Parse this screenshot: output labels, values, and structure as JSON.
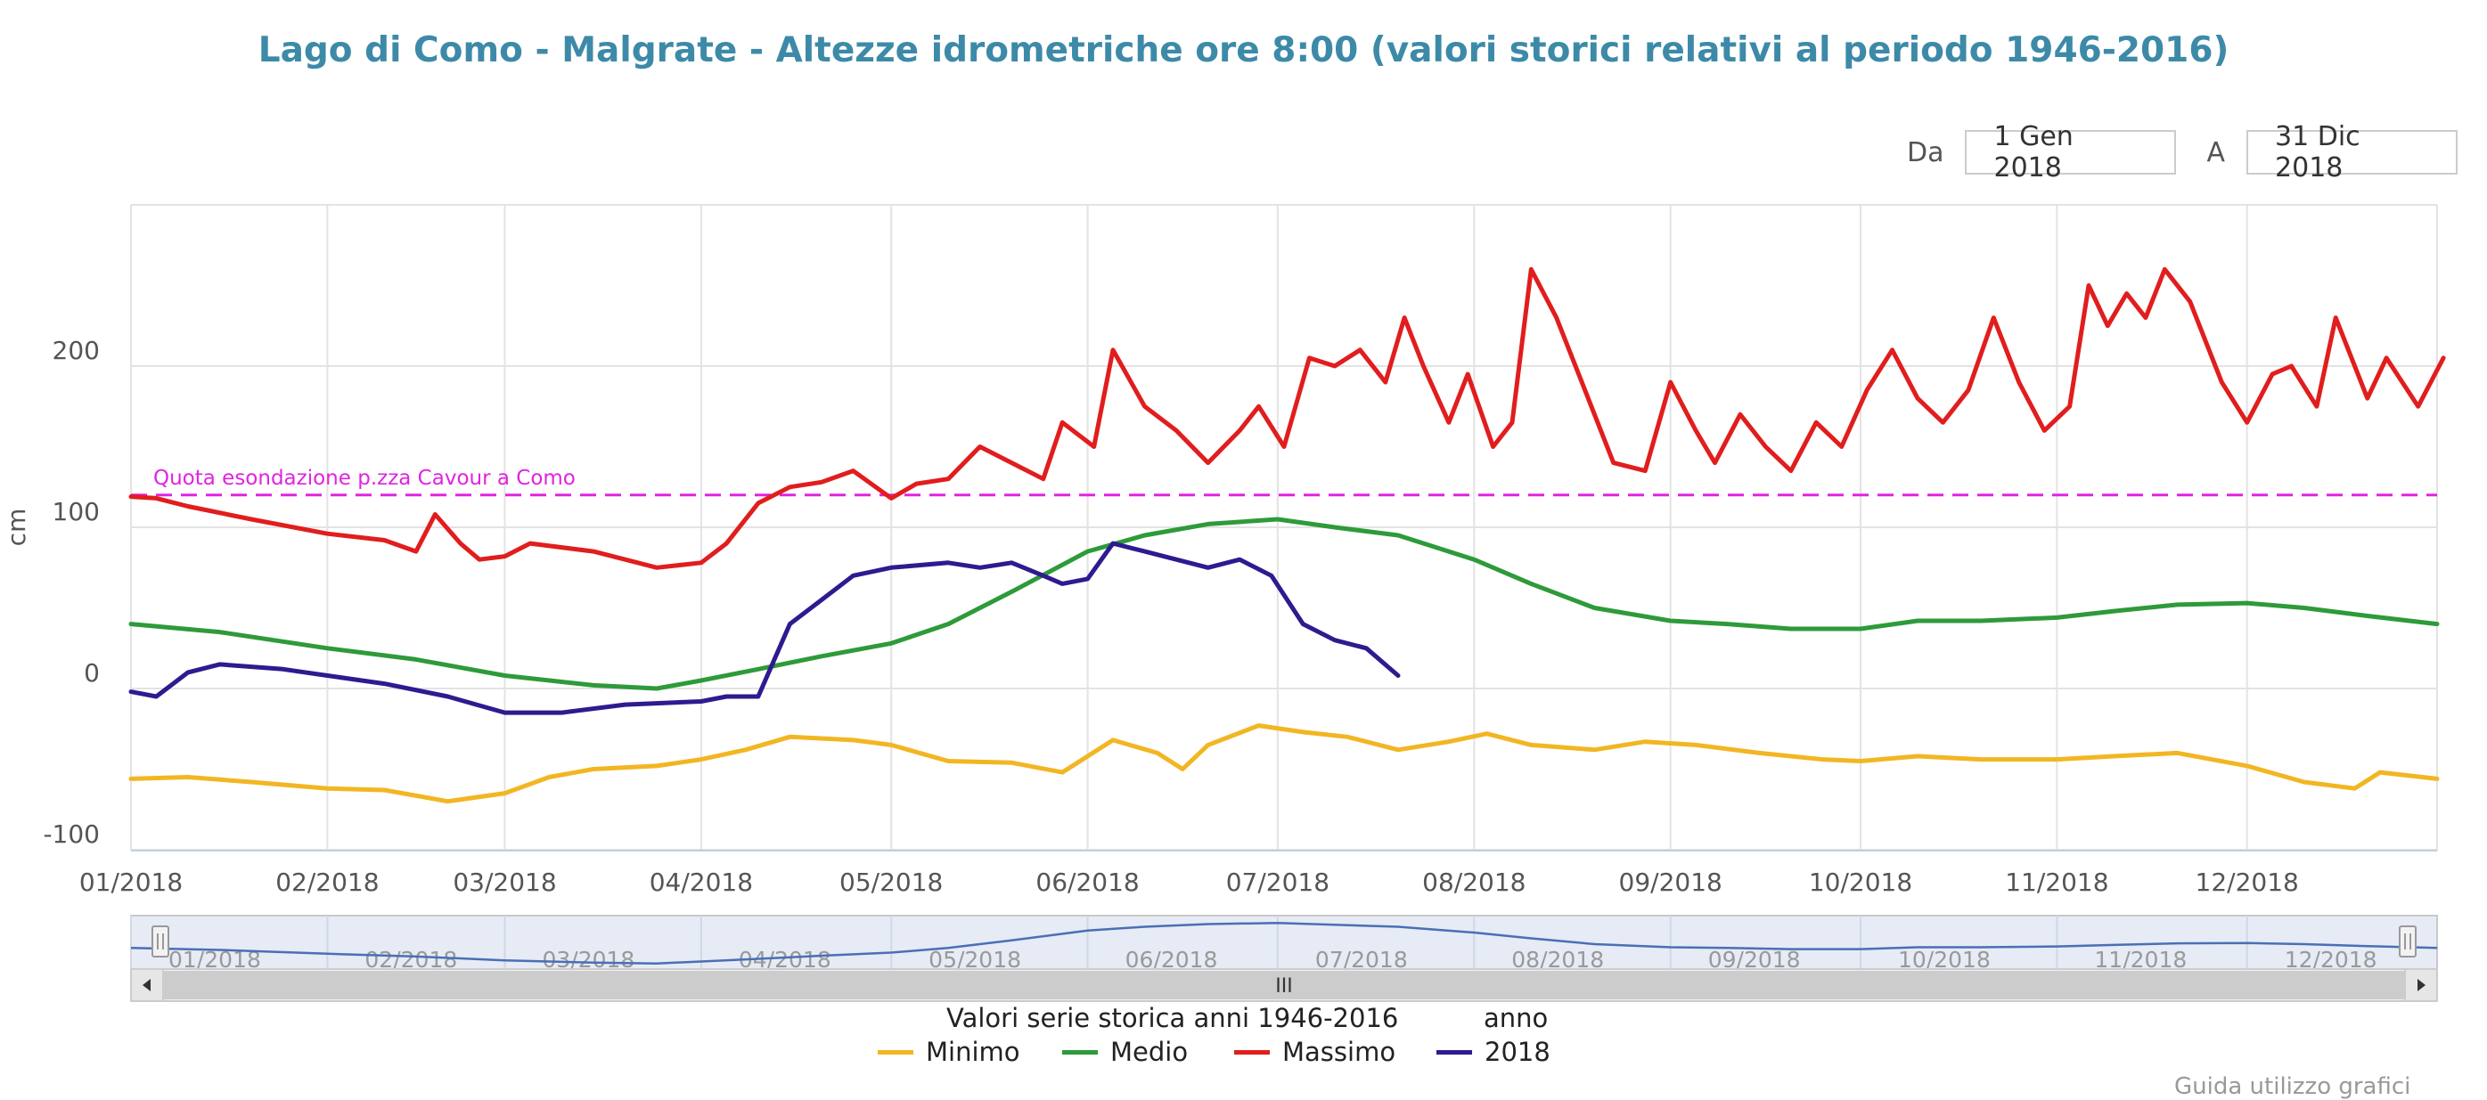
{
  "range_selector": {
    "from_label": "Da",
    "from_value": "1 Gen 2018",
    "to_label": "A",
    "to_value": "31 Dic 2018"
  },
  "legend": {
    "historic_heading": "Valori serie storica anni 1946-2016",
    "year_heading": "anno",
    "items": [
      {
        "name": "Minimo",
        "color": "#f2b623"
      },
      {
        "name": "Medio",
        "color": "#2e9a3a"
      },
      {
        "name": "Massimo",
        "color": "#e11d1d"
      },
      {
        "name": "2018",
        "color": "#2f1a8f"
      }
    ]
  },
  "navigator": {
    "scrollbar_grip": "III",
    "labels": [
      "01/2018",
      "02/2018",
      "03/2018",
      "04/2018",
      "05/2018",
      "06/2018",
      "07/2018",
      "08/2018",
      "09/2018",
      "10/2018",
      "11/2018",
      "12/2018"
    ]
  },
  "footer": {
    "text": "Guida utilizzo grafici"
  },
  "chart_data": {
    "type": "line",
    "title": "Lago di Como - Malgrate - Altezze idrometriche ore 8:00 (valori storici relativi al periodo 1946-2016)",
    "xlabel": "",
    "ylabel": "cm",
    "x_range": [
      "2018-01-01",
      "2018-12-31"
    ],
    "ylim": [
      -100,
      290
    ],
    "y_ticks": [
      -100,
      0,
      100,
      200
    ],
    "x_ticks": [
      "01/2018",
      "02/2018",
      "03/2018",
      "04/2018",
      "05/2018",
      "06/2018",
      "07/2018",
      "08/2018",
      "09/2018",
      "10/2018",
      "11/2018",
      "12/2018"
    ],
    "grid": true,
    "plot_lines": [
      {
        "label": "Quota esondazione p.zza Cavour a Como",
        "value": 120,
        "color": "#e024e0"
      }
    ],
    "series": [
      {
        "name": "Minimo",
        "color": "#f2b623",
        "points": [
          [
            "2018-01-01",
            -56
          ],
          [
            "2018-01-10",
            -55
          ],
          [
            "2018-01-20",
            -58
          ],
          [
            "2018-02-01",
            -62
          ],
          [
            "2018-02-10",
            -63
          ],
          [
            "2018-02-20",
            -70
          ],
          [
            "2018-03-01",
            -65
          ],
          [
            "2018-03-08",
            -55
          ],
          [
            "2018-03-15",
            -50
          ],
          [
            "2018-03-25",
            -48
          ],
          [
            "2018-04-01",
            -44
          ],
          [
            "2018-04-08",
            -38
          ],
          [
            "2018-04-15",
            -30
          ],
          [
            "2018-04-25",
            -32
          ],
          [
            "2018-05-01",
            -35
          ],
          [
            "2018-05-10",
            -45
          ],
          [
            "2018-05-20",
            -46
          ],
          [
            "2018-05-28",
            -52
          ],
          [
            "2018-06-05",
            -32
          ],
          [
            "2018-06-12",
            -40
          ],
          [
            "2018-06-16",
            -50
          ],
          [
            "2018-06-20",
            -35
          ],
          [
            "2018-06-28",
            -23
          ],
          [
            "2018-07-05",
            -27
          ],
          [
            "2018-07-12",
            -30
          ],
          [
            "2018-07-20",
            -38
          ],
          [
            "2018-07-28",
            -33
          ],
          [
            "2018-08-03",
            -28
          ],
          [
            "2018-08-10",
            -35
          ],
          [
            "2018-08-20",
            -38
          ],
          [
            "2018-08-28",
            -33
          ],
          [
            "2018-09-05",
            -35
          ],
          [
            "2018-09-15",
            -40
          ],
          [
            "2018-09-25",
            -44
          ],
          [
            "2018-10-01",
            -45
          ],
          [
            "2018-10-10",
            -42
          ],
          [
            "2018-10-20",
            -44
          ],
          [
            "2018-11-01",
            -44
          ],
          [
            "2018-11-10",
            -42
          ],
          [
            "2018-11-20",
            -40
          ],
          [
            "2018-12-01",
            -48
          ],
          [
            "2018-12-10",
            -58
          ],
          [
            "2018-12-18",
            -62
          ],
          [
            "2018-12-22",
            -52
          ],
          [
            "2018-12-31",
            -56
          ]
        ]
      },
      {
        "name": "Medio",
        "color": "#2e9a3a",
        "points": [
          [
            "2018-01-01",
            40
          ],
          [
            "2018-01-15",
            35
          ],
          [
            "2018-02-01",
            25
          ],
          [
            "2018-02-15",
            18
          ],
          [
            "2018-03-01",
            8
          ],
          [
            "2018-03-15",
            2
          ],
          [
            "2018-03-25",
            0
          ],
          [
            "2018-04-01",
            5
          ],
          [
            "2018-04-10",
            12
          ],
          [
            "2018-04-20",
            20
          ],
          [
            "2018-05-01",
            28
          ],
          [
            "2018-05-10",
            40
          ],
          [
            "2018-05-20",
            60
          ],
          [
            "2018-06-01",
            85
          ],
          [
            "2018-06-10",
            95
          ],
          [
            "2018-06-20",
            102
          ],
          [
            "2018-07-01",
            105
          ],
          [
            "2018-07-10",
            100
          ],
          [
            "2018-07-20",
            95
          ],
          [
            "2018-08-01",
            80
          ],
          [
            "2018-08-10",
            65
          ],
          [
            "2018-08-20",
            50
          ],
          [
            "2018-09-01",
            42
          ],
          [
            "2018-09-10",
            40
          ],
          [
            "2018-09-20",
            37
          ],
          [
            "2018-10-01",
            37
          ],
          [
            "2018-10-10",
            42
          ],
          [
            "2018-10-20",
            42
          ],
          [
            "2018-11-01",
            44
          ],
          [
            "2018-11-10",
            48
          ],
          [
            "2018-11-20",
            52
          ],
          [
            "2018-12-01",
            53
          ],
          [
            "2018-12-10",
            50
          ],
          [
            "2018-12-20",
            45
          ],
          [
            "2018-12-31",
            40
          ]
        ]
      },
      {
        "name": "Massimo",
        "color": "#e11d1d",
        "points": [
          [
            "2018-01-01",
            119
          ],
          [
            "2018-01-05",
            118
          ],
          [
            "2018-01-10",
            113
          ],
          [
            "2018-01-20",
            105
          ],
          [
            "2018-02-01",
            96
          ],
          [
            "2018-02-10",
            92
          ],
          [
            "2018-02-15",
            85
          ],
          [
            "2018-02-18",
            108
          ],
          [
            "2018-02-22",
            90
          ],
          [
            "2018-02-25",
            80
          ],
          [
            "2018-03-01",
            82
          ],
          [
            "2018-03-05",
            90
          ],
          [
            "2018-03-15",
            85
          ],
          [
            "2018-03-25",
            75
          ],
          [
            "2018-04-01",
            78
          ],
          [
            "2018-04-05",
            90
          ],
          [
            "2018-04-10",
            115
          ],
          [
            "2018-04-15",
            125
          ],
          [
            "2018-04-20",
            128
          ],
          [
            "2018-04-25",
            135
          ],
          [
            "2018-05-01",
            118
          ],
          [
            "2018-05-05",
            127
          ],
          [
            "2018-05-10",
            130
          ],
          [
            "2018-05-15",
            150
          ],
          [
            "2018-05-20",
            140
          ],
          [
            "2018-05-25",
            130
          ],
          [
            "2018-05-28",
            165
          ],
          [
            "2018-06-02",
            150
          ],
          [
            "2018-06-05",
            210
          ],
          [
            "2018-06-10",
            175
          ],
          [
            "2018-06-15",
            160
          ],
          [
            "2018-06-20",
            140
          ],
          [
            "2018-06-25",
            160
          ],
          [
            "2018-06-28",
            175
          ],
          [
            "2018-07-02",
            150
          ],
          [
            "2018-07-06",
            205
          ],
          [
            "2018-07-10",
            200
          ],
          [
            "2018-07-14",
            210
          ],
          [
            "2018-07-18",
            190
          ],
          [
            "2018-07-21",
            230
          ],
          [
            "2018-07-24",
            200
          ],
          [
            "2018-07-28",
            165
          ],
          [
            "2018-07-31",
            195
          ],
          [
            "2018-08-04",
            150
          ],
          [
            "2018-08-07",
            165
          ],
          [
            "2018-08-10",
            260
          ],
          [
            "2018-08-14",
            230
          ],
          [
            "2018-08-18",
            190
          ],
          [
            "2018-08-23",
            140
          ],
          [
            "2018-08-28",
            135
          ],
          [
            "2018-09-01",
            190
          ],
          [
            "2018-09-05",
            160
          ],
          [
            "2018-09-08",
            140
          ],
          [
            "2018-09-12",
            170
          ],
          [
            "2018-09-16",
            150
          ],
          [
            "2018-09-20",
            135
          ],
          [
            "2018-09-24",
            165
          ],
          [
            "2018-09-28",
            150
          ],
          [
            "2018-10-02",
            185
          ],
          [
            "2018-10-06",
            210
          ],
          [
            "2018-10-10",
            180
          ],
          [
            "2018-10-14",
            165
          ],
          [
            "2018-10-18",
            185
          ],
          [
            "2018-10-22",
            230
          ],
          [
            "2018-10-26",
            190
          ],
          [
            "2018-10-30",
            160
          ],
          [
            "2018-11-03",
            175
          ],
          [
            "2018-11-06",
            250
          ],
          [
            "2018-11-09",
            225
          ],
          [
            "2018-11-12",
            245
          ],
          [
            "2018-11-15",
            230
          ],
          [
            "2018-11-18",
            260
          ],
          [
            "2018-11-22",
            240
          ],
          [
            "2018-11-27",
            190
          ],
          [
            "2018-12-01",
            165
          ],
          [
            "2018-12-05",
            195
          ],
          [
            "2018-12-08",
            200
          ],
          [
            "2018-12-12",
            175
          ],
          [
            "2018-12-15",
            230
          ],
          [
            "2018-12-20",
            180
          ],
          [
            "2018-12-23",
            205
          ],
          [
            "2018-12-28",
            175
          ],
          [
            "2019-01-01",
            205
          ]
        ]
      },
      {
        "name": "2018",
        "color": "#2f1a8f",
        "points": [
          [
            "2018-01-01",
            -2
          ],
          [
            "2018-01-05",
            -5
          ],
          [
            "2018-01-10",
            10
          ],
          [
            "2018-01-15",
            15
          ],
          [
            "2018-01-25",
            12
          ],
          [
            "2018-02-01",
            8
          ],
          [
            "2018-02-10",
            3
          ],
          [
            "2018-02-20",
            -5
          ],
          [
            "2018-03-01",
            -15
          ],
          [
            "2018-03-10",
            -15
          ],
          [
            "2018-03-20",
            -10
          ],
          [
            "2018-04-01",
            -8
          ],
          [
            "2018-04-05",
            -5
          ],
          [
            "2018-04-10",
            -5
          ],
          [
            "2018-04-15",
            40
          ],
          [
            "2018-04-20",
            55
          ],
          [
            "2018-04-25",
            70
          ],
          [
            "2018-05-01",
            75
          ],
          [
            "2018-05-10",
            78
          ],
          [
            "2018-05-15",
            75
          ],
          [
            "2018-05-20",
            78
          ],
          [
            "2018-05-25",
            70
          ],
          [
            "2018-05-28",
            65
          ],
          [
            "2018-06-01",
            68
          ],
          [
            "2018-06-05",
            90
          ],
          [
            "2018-06-10",
            85
          ],
          [
            "2018-06-15",
            80
          ],
          [
            "2018-06-20",
            75
          ],
          [
            "2018-06-25",
            80
          ],
          [
            "2018-06-30",
            70
          ],
          [
            "2018-07-05",
            40
          ],
          [
            "2018-07-10",
            30
          ],
          [
            "2018-07-15",
            25
          ],
          [
            "2018-07-20",
            8
          ]
        ]
      }
    ]
  }
}
